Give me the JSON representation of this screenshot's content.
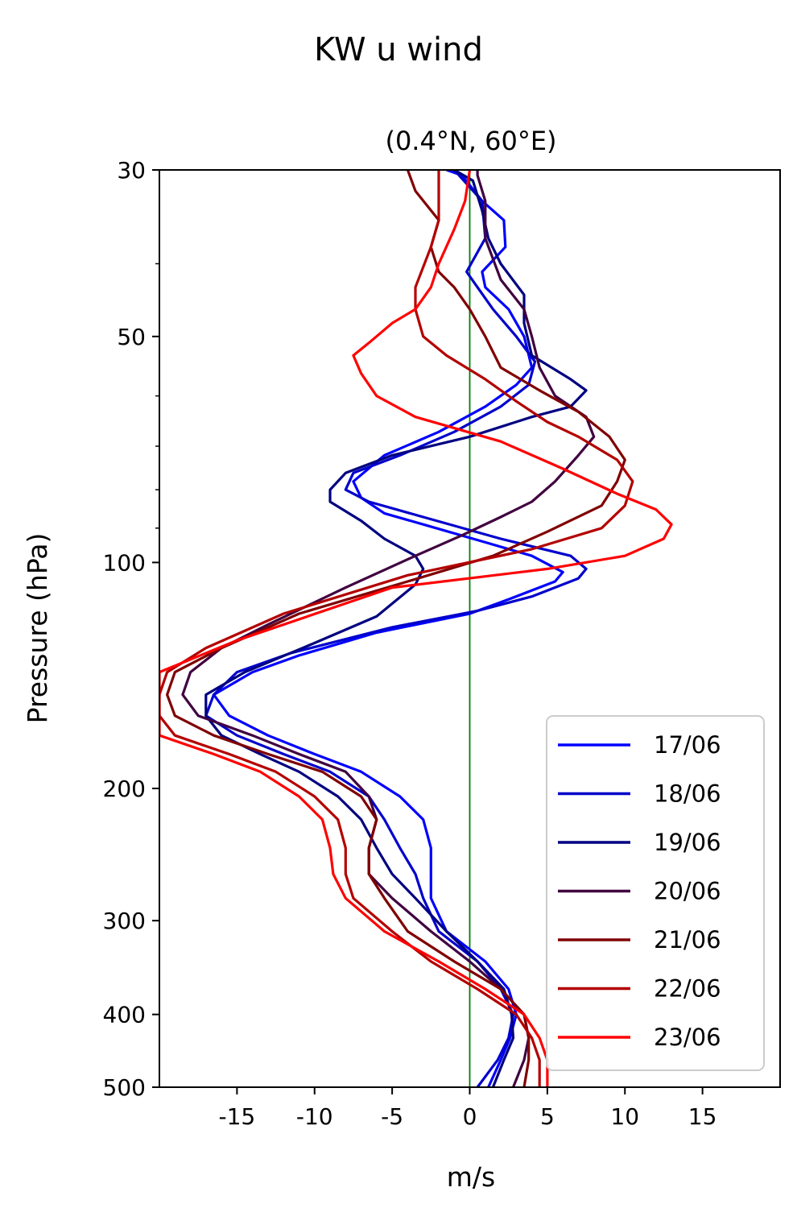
{
  "chart_data": {
    "type": "line",
    "title": "KW u wind",
    "subtitle": "(0.4°N, 60°E)",
    "xlabel": "m/s",
    "ylabel": "Pressure (hPa)",
    "xlim": [
      -20,
      20
    ],
    "ylim": [
      500,
      30
    ],
    "y_scale": "log",
    "xticks": [
      -15,
      -10,
      -5,
      0,
      5,
      10,
      15
    ],
    "xtick_labels": [
      "-15",
      "-10",
      "-5",
      "0",
      "5",
      "10",
      "15"
    ],
    "yticks": [
      30,
      50,
      100,
      200,
      300,
      400,
      500
    ],
    "ytick_labels": [
      "30",
      "50",
      "100",
      "200",
      "300",
      "400",
      "500"
    ],
    "grid": false,
    "legend_position": "lower-right",
    "reference_line": {
      "x": 0,
      "color": "#008000"
    },
    "series": [
      {
        "name": "17/06",
        "color": "#0000ff",
        "points": [
          [
            1.2,
            500
          ],
          [
            2.0,
            460
          ],
          [
            2.6,
            430
          ],
          [
            3.0,
            400
          ],
          [
            2.5,
            370
          ],
          [
            1.0,
            340
          ],
          [
            -1.5,
            310
          ],
          [
            -2.5,
            280
          ],
          [
            -2.5,
            260
          ],
          [
            -2.5,
            240
          ],
          [
            -3.0,
            220
          ],
          [
            -4.5,
            205
          ],
          [
            -7.0,
            190
          ],
          [
            -10.0,
            180
          ],
          [
            -13.0,
            170
          ],
          [
            -15.5,
            160
          ],
          [
            -16.5,
            150
          ],
          [
            -14.0,
            140
          ],
          [
            -11.0,
            133
          ],
          [
            -6.0,
            124
          ],
          [
            0,
            117
          ],
          [
            2.5,
            112
          ],
          [
            5.5,
            106
          ],
          [
            6.0,
            103
          ],
          [
            4.0,
            98
          ],
          [
            1.0,
            94
          ],
          [
            -3.0,
            89
          ],
          [
            -5.5,
            86
          ],
          [
            -7.0,
            82
          ],
          [
            -7.5,
            78
          ],
          [
            -5.5,
            72
          ],
          [
            -2.0,
            67
          ],
          [
            1.0,
            62
          ],
          [
            3.0,
            58
          ],
          [
            4.0,
            55
          ],
          [
            3.5,
            50
          ],
          [
            2.5,
            46
          ],
          [
            1.0,
            43
          ],
          [
            0.8,
            41
          ],
          [
            2.3,
            38
          ],
          [
            2.2,
            35
          ],
          [
            0.8,
            33
          ],
          [
            -0.5,
            30.5
          ],
          [
            -1.5,
            30
          ]
        ]
      },
      {
        "name": "18/06",
        "color": "#0000cc",
        "points": [
          [
            0.5,
            500
          ],
          [
            1.8,
            460
          ],
          [
            2.5,
            430
          ],
          [
            2.8,
            400
          ],
          [
            2.0,
            370
          ],
          [
            0.5,
            340
          ],
          [
            -2.0,
            310
          ],
          [
            -3.0,
            280
          ],
          [
            -3.5,
            260
          ],
          [
            -4.5,
            240
          ],
          [
            -5.5,
            220
          ],
          [
            -6.5,
            205
          ],
          [
            -9.0,
            190
          ],
          [
            -12.0,
            180
          ],
          [
            -15.0,
            170
          ],
          [
            -17.0,
            160
          ],
          [
            -16.5,
            150
          ],
          [
            -15.0,
            140
          ],
          [
            -11.5,
            132
          ],
          [
            -5.0,
            122
          ],
          [
            0.5,
            116
          ],
          [
            4.0,
            111
          ],
          [
            7.0,
            105
          ],
          [
            7.5,
            102
          ],
          [
            6.5,
            98
          ],
          [
            2.0,
            93
          ],
          [
            -3.0,
            87
          ],
          [
            -6.5,
            83
          ],
          [
            -8.0,
            80
          ],
          [
            -7.5,
            76
          ],
          [
            -4.5,
            72
          ],
          [
            -1.0,
            67
          ],
          [
            2.0,
            62
          ],
          [
            3.8,
            58
          ],
          [
            4.2,
            54
          ],
          [
            3.0,
            50
          ],
          [
            1.5,
            46
          ],
          [
            0.5,
            43
          ],
          [
            -0.2,
            41
          ],
          [
            1.0,
            37
          ],
          [
            0.8,
            33
          ],
          [
            -1.0,
            30
          ]
        ]
      },
      {
        "name": "19/06",
        "color": "#000080",
        "points": [
          [
            1.5,
            500
          ],
          [
            2.2,
            460
          ],
          [
            2.8,
            430
          ],
          [
            2.7,
            400
          ],
          [
            2.2,
            370
          ],
          [
            0.5,
            340
          ],
          [
            -1.5,
            310
          ],
          [
            -3.5,
            280
          ],
          [
            -5.0,
            260
          ],
          [
            -6.0,
            240
          ],
          [
            -7.0,
            220
          ],
          [
            -8.5,
            205
          ],
          [
            -11.0,
            190
          ],
          [
            -13.5,
            180
          ],
          [
            -16.0,
            170
          ],
          [
            -17.0,
            160
          ],
          [
            -17.0,
            150
          ],
          [
            -14.5,
            140
          ],
          [
            -10.0,
            128
          ],
          [
            -6.0,
            118
          ],
          [
            -3.5,
            107
          ],
          [
            -3.0,
            102
          ],
          [
            -3.5,
            98
          ],
          [
            -5.5,
            93
          ],
          [
            -7.0,
            88
          ],
          [
            -9.0,
            83
          ],
          [
            -9.0,
            80
          ],
          [
            -8.0,
            76
          ],
          [
            -5.0,
            72
          ],
          [
            0,
            68
          ],
          [
            4.0,
            64
          ],
          [
            6.5,
            62
          ],
          [
            7.5,
            59
          ],
          [
            6.5,
            57
          ],
          [
            4.0,
            53
          ],
          [
            3.5,
            48
          ],
          [
            3.5,
            44
          ],
          [
            2.0,
            40
          ],
          [
            1.2,
            37
          ],
          [
            0.8,
            34
          ],
          [
            0.2,
            31
          ],
          [
            -1.0,
            30
          ]
        ]
      },
      {
        "name": "20/06",
        "color": "#400040",
        "points": [
          [
            2.8,
            500
          ],
          [
            3.5,
            460
          ],
          [
            3.8,
            430
          ],
          [
            3.5,
            400
          ],
          [
            2.0,
            370
          ],
          [
            0,
            340
          ],
          [
            -2.5,
            310
          ],
          [
            -5.0,
            280
          ],
          [
            -6.5,
            260
          ],
          [
            -6.5,
            240
          ],
          [
            -6.0,
            220
          ],
          [
            -6.5,
            205
          ],
          [
            -8.0,
            190
          ],
          [
            -11.0,
            180
          ],
          [
            -14.0,
            170
          ],
          [
            -17.5,
            160
          ],
          [
            -18.5,
            150
          ],
          [
            -18.0,
            140
          ],
          [
            -16.0,
            130
          ],
          [
            -13.0,
            121
          ],
          [
            -8.0,
            108
          ],
          [
            -3.5,
            98
          ],
          [
            -0.5,
            92
          ],
          [
            2.0,
            87
          ],
          [
            4.0,
            83
          ],
          [
            5.5,
            78
          ],
          [
            7.0,
            72
          ],
          [
            8.0,
            68
          ],
          [
            7.5,
            64
          ],
          [
            5.5,
            60
          ],
          [
            4.5,
            55
          ],
          [
            4.0,
            50
          ],
          [
            3.5,
            46
          ],
          [
            2.0,
            42
          ],
          [
            1.0,
            37
          ],
          [
            1.0,
            33
          ],
          [
            0.5,
            30.5
          ],
          [
            0.5,
            30
          ]
        ]
      },
      {
        "name": "21/06",
        "color": "#800000",
        "points": [
          [
            3.5,
            500
          ],
          [
            3.8,
            460
          ],
          [
            3.8,
            430
          ],
          [
            3.5,
            400
          ],
          [
            2.0,
            370
          ],
          [
            -1.0,
            340
          ],
          [
            -4.0,
            310
          ],
          [
            -5.5,
            280
          ],
          [
            -6.5,
            260
          ],
          [
            -6.5,
            240
          ],
          [
            -6.0,
            220
          ],
          [
            -7.0,
            205
          ],
          [
            -9.5,
            190
          ],
          [
            -13.0,
            180
          ],
          [
            -16.5,
            170
          ],
          [
            -19.0,
            160
          ],
          [
            -19.5,
            150
          ],
          [
            -19.0,
            140
          ],
          [
            -16.0,
            130
          ],
          [
            -11.0,
            117
          ],
          [
            -4.0,
            106
          ],
          [
            1.5,
            98
          ],
          [
            5.0,
            91
          ],
          [
            8.5,
            84
          ],
          [
            9.5,
            78
          ],
          [
            10.0,
            73
          ],
          [
            9.0,
            68
          ],
          [
            7.0,
            63
          ],
          [
            4.5,
            59
          ],
          [
            2.0,
            55
          ],
          [
            1.0,
            50
          ],
          [
            0,
            46
          ],
          [
            -1.0,
            43
          ],
          [
            -2.0,
            41
          ],
          [
            -2.5,
            38
          ],
          [
            -2.0,
            35
          ],
          [
            -3.5,
            32
          ],
          [
            -4.0,
            30
          ]
        ]
      },
      {
        "name": "22/06",
        "color": "#b30000",
        "points": [
          [
            4.5,
            500
          ],
          [
            4.5,
            460
          ],
          [
            4.0,
            430
          ],
          [
            3.0,
            400
          ],
          [
            0.5,
            370
          ],
          [
            -2.5,
            340
          ],
          [
            -5.0,
            310
          ],
          [
            -7.5,
            280
          ],
          [
            -8.0,
            260
          ],
          [
            -8.0,
            240
          ],
          [
            -8.5,
            220
          ],
          [
            -10.0,
            205
          ],
          [
            -12.5,
            190
          ],
          [
            -15.5,
            180
          ],
          [
            -19.0,
            170
          ],
          [
            -20.0,
            160
          ],
          [
            -20.0,
            150
          ],
          [
            -19.5,
            140
          ],
          [
            -17.0,
            130
          ],
          [
            -12.0,
            117
          ],
          [
            -4.0,
            104
          ],
          [
            4.0,
            96
          ],
          [
            8.5,
            90
          ],
          [
            10.0,
            84
          ],
          [
            10.5,
            78
          ],
          [
            9.5,
            73
          ],
          [
            7.0,
            68
          ],
          [
            5.0,
            65
          ],
          [
            3.0,
            61
          ],
          [
            1.0,
            57
          ],
          [
            -1.5,
            53
          ],
          [
            -3.0,
            50
          ],
          [
            -3.5,
            46
          ],
          [
            -3.5,
            43
          ],
          [
            -2.5,
            38
          ],
          [
            -2.0,
            35
          ],
          [
            -2.0,
            30
          ]
        ]
      },
      {
        "name": "23/06",
        "color": "#ff0000",
        "points": [
          [
            5.0,
            500
          ],
          [
            5.0,
            460
          ],
          [
            4.5,
            430
          ],
          [
            3.5,
            400
          ],
          [
            1.0,
            370
          ],
          [
            -2.0,
            340
          ],
          [
            -5.5,
            310
          ],
          [
            -8.0,
            280
          ],
          [
            -8.8,
            260
          ],
          [
            -9.0,
            240
          ],
          [
            -9.5,
            220
          ],
          [
            -11.0,
            205
          ],
          [
            -13.5,
            190
          ],
          [
            -16.5,
            180
          ],
          [
            -20.0,
            170
          ],
          [
            -20.0,
            150
          ],
          [
            -20.0,
            140
          ],
          [
            -15.0,
            127
          ],
          [
            -5.0,
            108
          ],
          [
            5.0,
            102
          ],
          [
            10.0,
            98
          ],
          [
            12.5,
            93
          ],
          [
            13.0,
            89
          ],
          [
            12.0,
            85
          ],
          [
            9.5,
            81
          ],
          [
            6.0,
            75
          ],
          [
            2.0,
            69
          ],
          [
            -3.5,
            64
          ],
          [
            -6.0,
            60
          ],
          [
            -7.0,
            56
          ],
          [
            -7.5,
            53
          ],
          [
            -6.5,
            51
          ],
          [
            -5.0,
            48
          ],
          [
            -3.5,
            46
          ],
          [
            -2.5,
            43
          ],
          [
            -2.0,
            40
          ],
          [
            -1.0,
            36
          ],
          [
            -0.3,
            33
          ],
          [
            0,
            30
          ]
        ]
      }
    ]
  }
}
